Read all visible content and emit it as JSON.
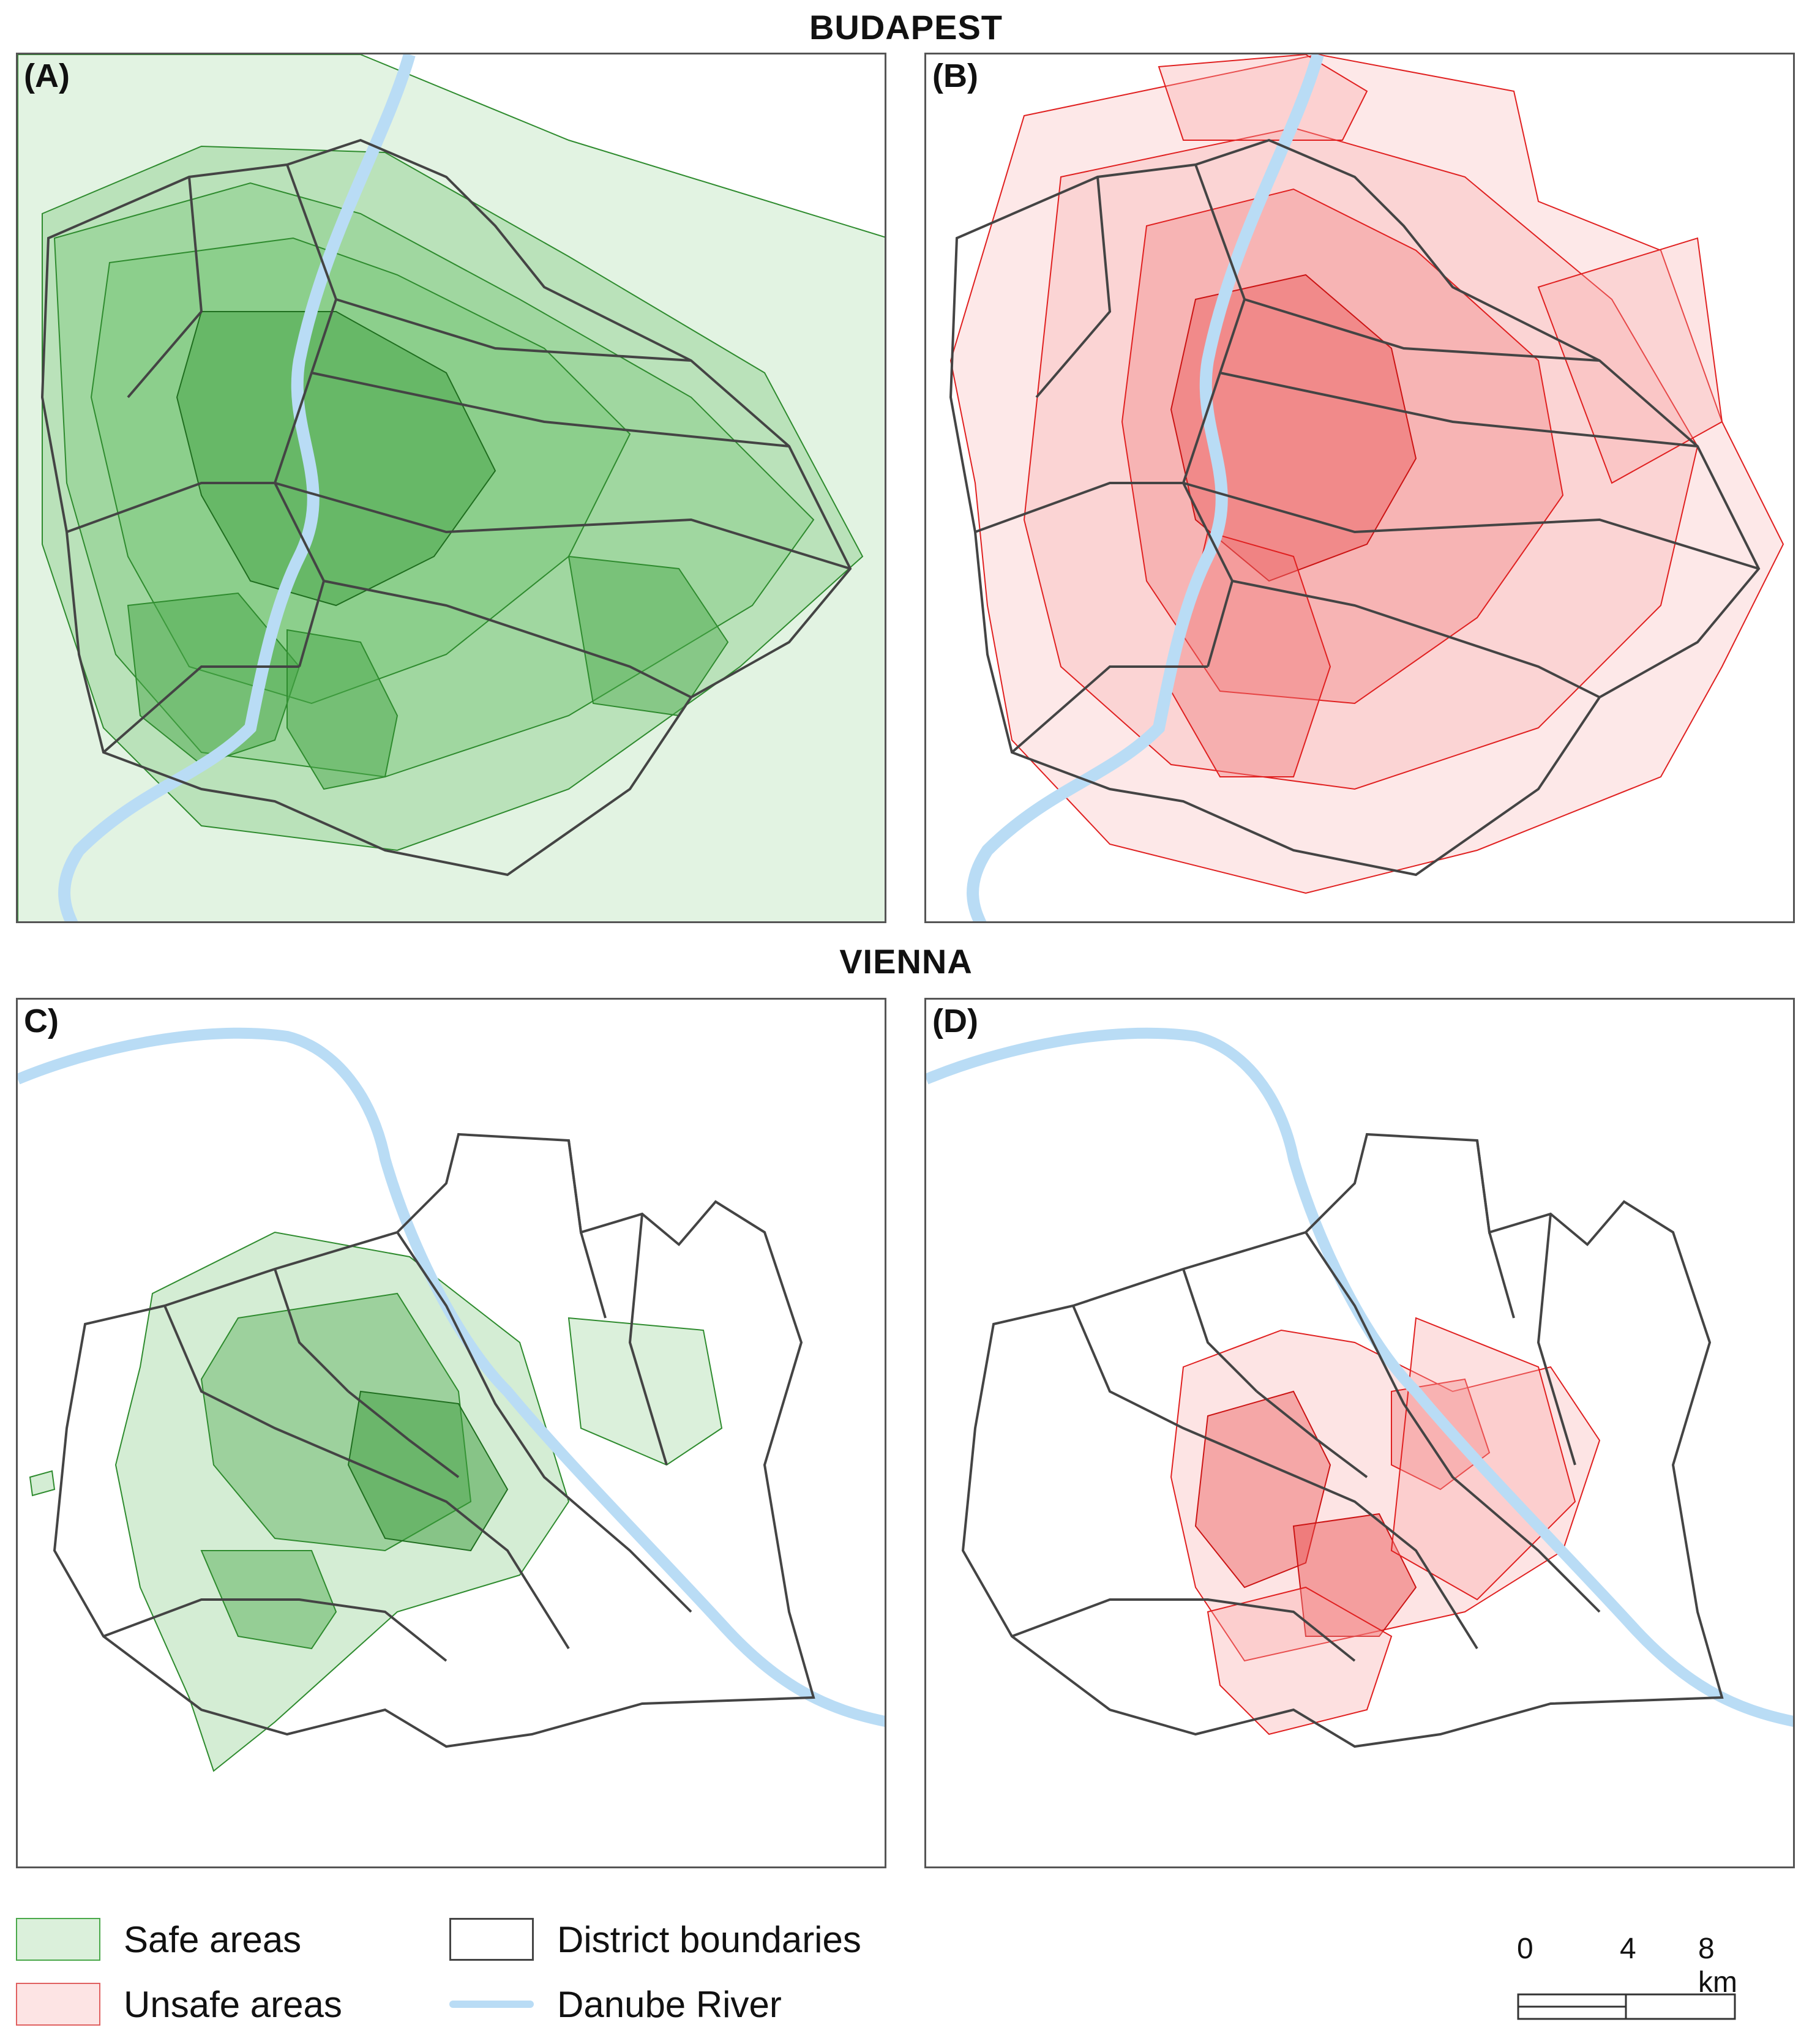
{
  "titles": {
    "top": "BUDAPEST",
    "bottom": "VIENNA"
  },
  "panels": [
    {
      "id": "A",
      "label": "(A)",
      "fill": "safe"
    },
    {
      "id": "B",
      "label": "(B)",
      "fill": "unsafe"
    },
    {
      "id": "C",
      "label": "C)",
      "fill": "safe"
    },
    {
      "id": "D",
      "label": "(D)",
      "fill": "unsafe"
    }
  ],
  "legend": {
    "safe": "Safe areas",
    "unsafe": "Unsafe areas",
    "district": "District boundaries",
    "river": "Danube River"
  },
  "scale": {
    "labels": [
      "0",
      "4",
      "8 km"
    ]
  },
  "colors": {
    "safe_fill": "#6fc46f",
    "safe_stroke": "#2e8b2e",
    "unsafe_fill": "#f8a5a5",
    "unsafe_stroke": "#e02020",
    "district": "#444444",
    "river": "#b9dcf5"
  }
}
